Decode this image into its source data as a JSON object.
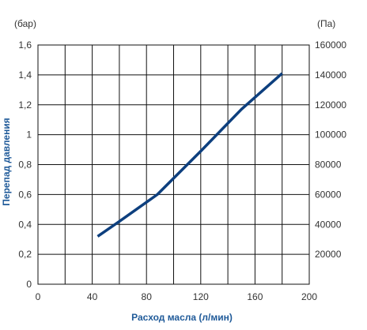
{
  "chart_data": {
    "type": "line",
    "xlabel": "Расход масла (л/мин)",
    "ylabel": "Перепад давления",
    "y_left_unit": "(бар)",
    "y_right_unit": "(Па)",
    "xlim": [
      0,
      200
    ],
    "ylim": [
      0,
      1.6
    ],
    "ylim_right": [
      0,
      160000
    ],
    "x_ticks": [
      0,
      40,
      80,
      120,
      160,
      200
    ],
    "x_tick_labels": [
      "0",
      "40",
      "80",
      "120",
      "160",
      "200"
    ],
    "y_ticks": [
      0,
      0.2,
      0.4,
      0.6,
      0.8,
      1.0,
      1.2,
      1.4,
      1.6
    ],
    "y_tick_labels": [
      "0",
      "0,2",
      "0,4",
      "0,6",
      "0,8",
      "1",
      "1,2",
      "1,4",
      "1,6"
    ],
    "y_right_ticks": [
      20000,
      40000,
      60000,
      80000,
      100000,
      120000,
      140000,
      160000
    ],
    "y_right_tick_labels": [
      "20000",
      "40000",
      "60000",
      "80000",
      "100000",
      "120000",
      "140000",
      "160000"
    ],
    "x_grid_lines": [
      0,
      20,
      40,
      60,
      80,
      100,
      120,
      140,
      160,
      180,
      200
    ],
    "grid": true,
    "series": [
      {
        "x": [
          44,
          60,
          88,
          120,
          150,
          180
        ],
        "y": [
          0.32,
          0.42,
          0.6,
          0.89,
          1.17,
          1.41
        ]
      }
    ],
    "colors": {
      "line": "#0d3f7e",
      "axis_title": "#1f5a99",
      "grid": "#111111",
      "tick_text": "#333333"
    }
  }
}
